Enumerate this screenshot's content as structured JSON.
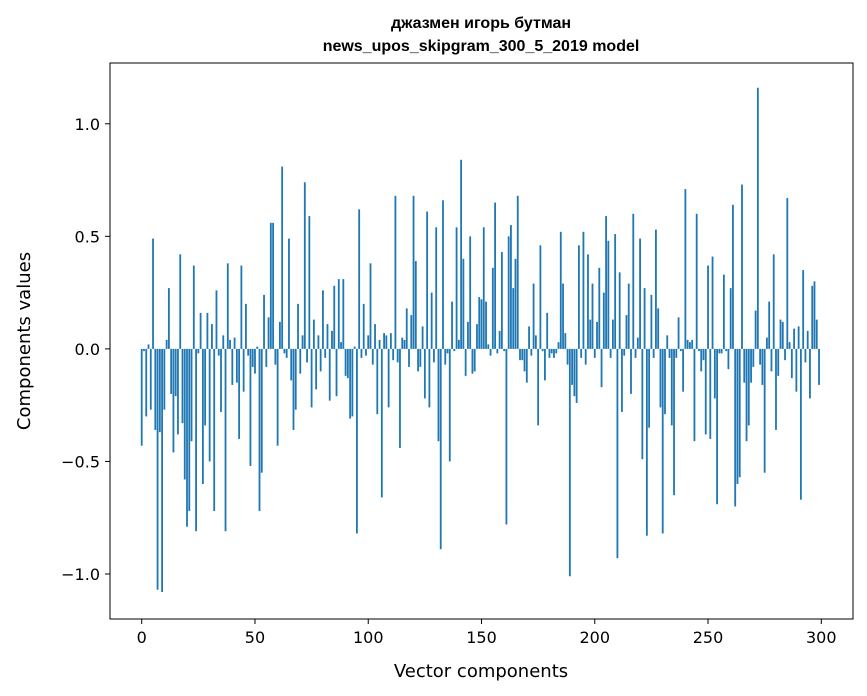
{
  "chart_data": {
    "type": "bar",
    "title": "джазмен игорь бутман",
    "subtitle": "news_upos_skipgram_300_5_2019 model",
    "xlabel": "Vector components",
    "ylabel": "Components values",
    "xlim": [
      -14,
      314
    ],
    "ylim": [
      -1.2,
      1.27
    ],
    "xticks": [
      0,
      50,
      100,
      150,
      200,
      250,
      300
    ],
    "xtick_labels": [
      "0",
      "50",
      "100",
      "150",
      "200",
      "250",
      "300"
    ],
    "yticks": [
      -1.0,
      -0.5,
      0.0,
      0.5,
      1.0
    ],
    "ytick_labels": [
      "−1.0",
      "−0.5",
      "0.0",
      "0.5",
      "1.0"
    ],
    "grid": false,
    "bar_color": "#1f77b4",
    "values": [
      -0.43,
      -0.01,
      -0.3,
      0.02,
      -0.27,
      0.49,
      -0.36,
      -1.07,
      -0.37,
      -1.08,
      -0.27,
      0.04,
      0.27,
      -0.2,
      -0.46,
      -0.21,
      -0.38,
      0.42,
      -0.33,
      -0.58,
      -0.79,
      -0.72,
      -0.41,
      0.37,
      -0.81,
      -0.02,
      0.16,
      -0.6,
      -0.34,
      0.16,
      -0.5,
      0.11,
      -0.72,
      0.26,
      -0.03,
      -0.28,
      0.06,
      -0.81,
      0.38,
      0.04,
      -0.16,
      0.05,
      -0.15,
      -0.4,
      0.37,
      -0.19,
      0.2,
      -0.03,
      -0.52,
      -0.08,
      -0.11,
      0.01,
      -0.72,
      -0.55,
      0.24,
      -0.08,
      0.14,
      0.56,
      0.56,
      -0.07,
      -0.43,
      0.12,
      0.81,
      -0.02,
      -0.04,
      0.49,
      -0.14,
      -0.36,
      -0.27,
      0.2,
      -0.11,
      0.06,
      0.74,
      -0.06,
      0.59,
      -0.26,
      0.13,
      -0.18,
      0.06,
      -0.1,
      0.26,
      -0.04,
      0.11,
      -0.23,
      0.08,
      0.28,
      -0.21,
      0.31,
      0.03,
      0.31,
      -0.12,
      -0.13,
      -0.31,
      -0.3,
      0.01,
      -0.82,
      0.62,
      -0.04,
      0.2,
      -0.03,
      0.06,
      0.38,
      -0.07,
      0.11,
      -0.29,
      0.04,
      -0.66,
      0.07,
      0.06,
      -0.26,
      0.07,
      -0.05,
      0.68,
      -0.06,
      -0.44,
      0.05,
      0.04,
      0.18,
      -0.08,
      0.15,
      0.68,
      0.39,
      -0.1,
      -0.08,
      0.1,
      -0.22,
      0.61,
      -0.26,
      0.25,
      -0.06,
      0.54,
      -0.41,
      -0.89,
      0.66,
      -0.07,
      -0.02,
      -0.5,
      0.21,
      -0.01,
      0.54,
      0.04,
      0.84,
      0.4,
      -0.12,
      0.12,
      0.5,
      -0.11,
      -0.1,
      0.11,
      0.23,
      0.22,
      0.54,
      0.21,
      0.02,
      -0.03,
      0.36,
      0.65,
      -0.02,
      0.08,
      0.43,
      -0.01,
      -0.78,
      0.5,
      0.55,
      0.27,
      0.4,
      0.68,
      -0.05,
      -0.05,
      -0.1,
      -0.15,
      0.1,
      -0.03,
      0.29,
      0.06,
      -0.34,
      0.46,
      -0.01,
      -0.14,
      0.16,
      -0.04,
      -0.02,
      -0.04,
      -0.02,
      0.03,
      0.52,
      0.29,
      0.07,
      -0.07,
      -1.01,
      -0.16,
      -0.21,
      -0.24,
      0.46,
      -0.04,
      0.52,
      -0.07,
      0.42,
      0.13,
      0.29,
      -0.04,
      0.12,
      0.36,
      -0.17,
      0.25,
      0.59,
      0.48,
      -0.04,
      0.13,
      0.51,
      -0.93,
      0.34,
      -0.28,
      -0.03,
      0.15,
      0.29,
      -0.2,
      0.6,
      -0.04,
      0.05,
      0.49,
      -0.49,
      0.27,
      -0.83,
      -0.35,
      0.24,
      -0.04,
      0.53,
      0.18,
      -0.26,
      -0.82,
      -0.29,
      0.06,
      -0.04,
      -0.34,
      -0.65,
      -0.04,
      0.14,
      -0.01,
      -0.19,
      0.71,
      0.04,
      0.03,
      0.04,
      -0.41,
      0.6,
      -0.01,
      -0.1,
      -0.05,
      -0.38,
      0.37,
      -0.4,
      0.41,
      -0.22,
      -0.69,
      -0.02,
      -0.02,
      0.33,
      -0.01,
      -0.09,
      0.27,
      0.64,
      -0.7,
      -0.6,
      -0.57,
      0.73,
      -0.15,
      -0.41,
      -0.34,
      -0.15,
      -0.08,
      0.17,
      1.16,
      -0.07,
      -0.16,
      -0.55,
      0.05,
      0.21,
      -0.1,
      0.42,
      -0.36,
      -0.12,
      0.13,
      0.12,
      -0.05,
      0.67,
      0.03,
      -0.13,
      0.09,
      -0.19,
      0.1,
      -0.67,
      0.35,
      -0.06,
      0.08,
      -0.22,
      0.28,
      0.3,
      0.13,
      -0.16
    ]
  }
}
